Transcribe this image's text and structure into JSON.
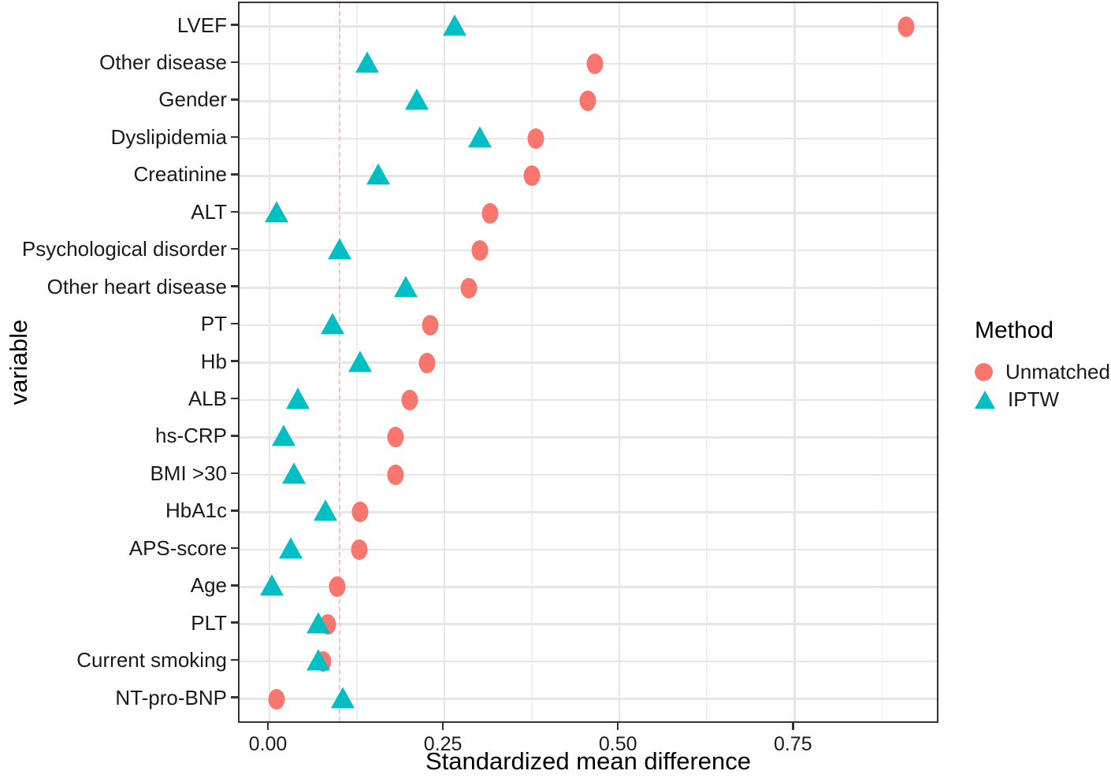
{
  "chart_data": {
    "type": "scatter",
    "title": "",
    "xlabel": "Standardized mean difference",
    "ylabel": "variable",
    "legend": {
      "title": "Method",
      "position": "right",
      "entries": [
        {
          "label": "Unmatched",
          "marker": "circle",
          "color": "#F8766D"
        },
        {
          "label": "IPTW",
          "marker": "triangle",
          "color": "#00BFC4"
        }
      ]
    },
    "x_axis": {
      "ticks": [
        {
          "value": 0.0,
          "label": "0.00"
        },
        {
          "value": 0.25,
          "label": "0.25"
        },
        {
          "value": 0.5,
          "label": "0.50"
        },
        {
          "value": 0.75,
          "label": "0.75"
        }
      ],
      "minor_ticks": [
        0.125,
        0.375,
        0.625,
        0.875
      ],
      "range": [
        -0.043,
        0.957
      ]
    },
    "threshold_line": {
      "value": 0.1,
      "style": "dashed",
      "color": "#f4c2c0"
    },
    "grid": "on",
    "categories": [
      "LVEF",
      "Other disease",
      "Gender",
      "Dyslipidemia",
      "Creatinine",
      "ALT",
      "Psychological disorder",
      "Other heart disease",
      "PT",
      "Hb",
      "ALB",
      "hs-CRP",
      "BMI >30",
      "HbA1c",
      "APS-score",
      "Age",
      "PLT",
      "Current smoking",
      "NT-pro-BNP"
    ],
    "series": [
      {
        "name": "Unmatched",
        "marker": "circle",
        "color": "#F8766D",
        "values": [
          0.91,
          0.465,
          0.455,
          0.38,
          0.375,
          0.315,
          0.3,
          0.285,
          0.23,
          0.225,
          0.2,
          0.18,
          0.18,
          0.13,
          0.128,
          0.097,
          0.083,
          0.077,
          0.01
        ]
      },
      {
        "name": "IPTW",
        "marker": "triangle",
        "color": "#00BFC4",
        "values": [
          0.265,
          0.14,
          0.21,
          0.3,
          0.155,
          0.01,
          0.1,
          0.195,
          0.09,
          0.13,
          0.04,
          0.02,
          0.035,
          0.08,
          0.03,
          0.003,
          0.07,
          0.07,
          0.105
        ]
      }
    ],
    "style": {
      "grid_major": "#e6e6e6",
      "grid_minor": "#f0f0f0",
      "panel_border": "#333333",
      "tick_color": "#333333",
      "text_color": "#1a1a1a"
    }
  }
}
